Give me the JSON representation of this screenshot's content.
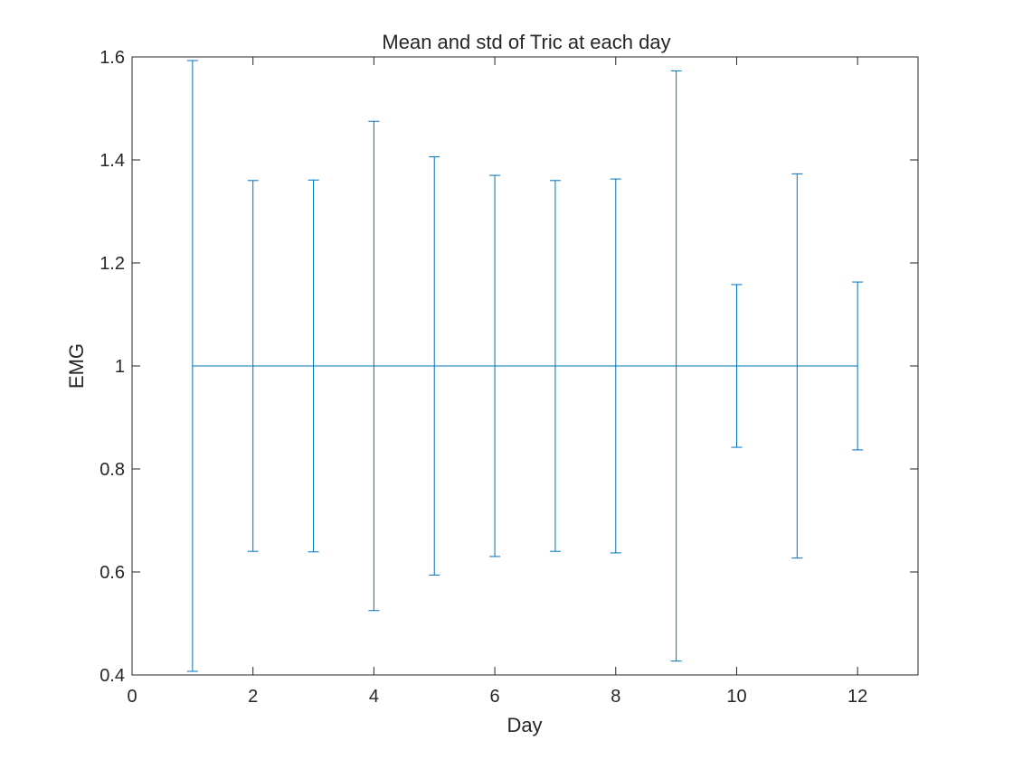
{
  "chart_data": {
    "type": "errorbar",
    "title": "Mean and std of Tric at each day",
    "xlabel": "Day",
    "ylabel": "EMG",
    "xlim": [
      0,
      13
    ],
    "ylim": [
      0.4,
      1.6
    ],
    "xticks": [
      0,
      2,
      4,
      6,
      8,
      10,
      12
    ],
    "xtick_labels": [
      "0",
      "2",
      "4",
      "6",
      "8",
      "10",
      "12"
    ],
    "yticks": [
      0.4,
      0.6,
      0.8,
      1.0,
      1.2,
      1.4,
      1.6
    ],
    "ytick_labels": [
      "0.4",
      "0.6",
      "0.8",
      "1",
      "1.2",
      "1.4",
      "1.6"
    ],
    "grid": false,
    "series_color": "#0072bd",
    "axis_color": "#262626",
    "x": [
      1,
      2,
      3,
      4,
      5,
      6,
      7,
      8,
      9,
      10,
      11,
      12
    ],
    "mean": [
      1,
      1,
      1,
      1,
      1,
      1,
      1,
      1,
      1,
      1,
      1,
      1
    ],
    "std": [
      0.593,
      0.36,
      0.361,
      0.475,
      0.406,
      0.37,
      0.36,
      0.363,
      0.573,
      0.158,
      0.373,
      0.163
    ]
  }
}
